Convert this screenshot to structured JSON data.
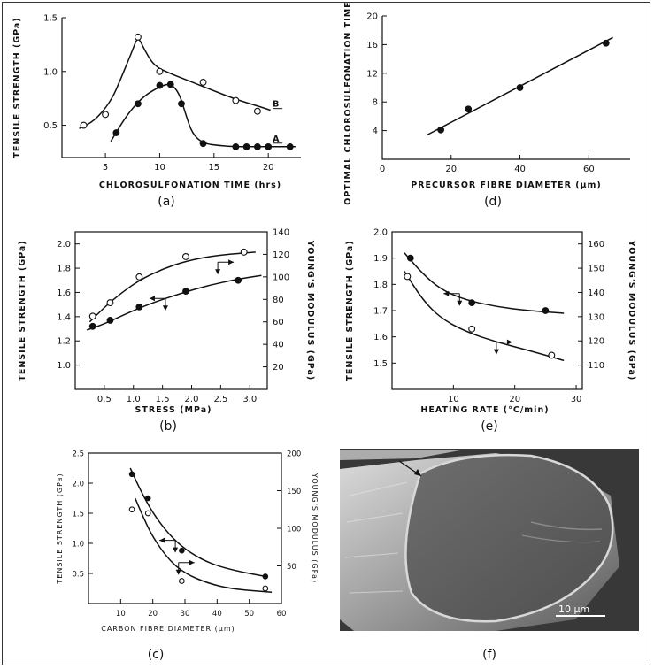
{
  "chart_data": [
    {
      "id": "a",
      "type": "scatter",
      "caption": "(a)",
      "xlabel": "CHLOROSULFONATION TIME (hrs)",
      "ylabel": "TENSILE STRENGTH (GPa)",
      "xlim": [
        1,
        23
      ],
      "ylim": [
        0.2,
        1.5
      ],
      "xticks": [
        5,
        10,
        15,
        20
      ],
      "yticks": [
        0.5,
        1.0,
        1.5
      ],
      "xtick_labels": [
        "5",
        "10",
        "15",
        "20"
      ],
      "ytick_labels": [
        "0.5",
        "1.0",
        "1.5"
      ],
      "series": [
        {
          "name": "B",
          "marker": "open",
          "x": [
            3,
            5,
            8,
            10,
            14,
            17,
            19
          ],
          "y": [
            0.5,
            0.6,
            1.32,
            1.0,
            0.9,
            0.73,
            0.63
          ],
          "curve": [
            [
              2.6,
              0.47
            ],
            [
              4,
              0.54
            ],
            [
              5.5,
              0.72
            ],
            [
              6.5,
              0.95
            ],
            [
              7.5,
              1.2
            ],
            [
              8,
              1.33
            ],
            [
              8.6,
              1.2
            ],
            [
              9.5,
              1.05
            ],
            [
              11,
              0.98
            ],
            [
              13,
              0.9
            ],
            [
              15,
              0.82
            ],
            [
              17,
              0.74
            ],
            [
              19,
              0.68
            ],
            [
              20.2,
              0.64
            ]
          ]
        },
        {
          "name": "A",
          "marker": "filled",
          "x": [
            6,
            8,
            10,
            11,
            12,
            14,
            17,
            18,
            19,
            20,
            22
          ],
          "y": [
            0.43,
            0.7,
            0.87,
            0.88,
            0.7,
            0.33,
            0.3,
            0.3,
            0.3,
            0.3,
            0.3
          ],
          "curve": [
            [
              5.5,
              0.35
            ],
            [
              7,
              0.6
            ],
            [
              8.5,
              0.77
            ],
            [
              10,
              0.86
            ],
            [
              11,
              0.89
            ],
            [
              11.8,
              0.8
            ],
            [
              12.4,
              0.6
            ],
            [
              13,
              0.42
            ],
            [
              14,
              0.33
            ],
            [
              15.5,
              0.31
            ],
            [
              17,
              0.3
            ],
            [
              22.5,
              0.3
            ]
          ]
        }
      ],
      "annotations": [
        "B",
        "A"
      ]
    },
    {
      "id": "d",
      "type": "scatter",
      "caption": "(d)",
      "xlabel": "PRECURSOR FIBRE DIAMETER (μm)",
      "ylabel": "OPTIMAL CHLOROSULFONATION TIME (hrs)",
      "xlim": [
        0,
        72
      ],
      "ylim": [
        0,
        20
      ],
      "xticks": [
        0,
        20,
        40,
        60
      ],
      "yticks": [
        4,
        8,
        12,
        16,
        20
      ],
      "xtick_labels": [
        "0",
        "20",
        "40",
        "60"
      ],
      "ytick_labels": [
        "4",
        "8",
        "12",
        "16",
        "20"
      ],
      "series": [
        {
          "marker": "filled",
          "x": [
            17,
            25,
            40,
            65
          ],
          "y": [
            4.1,
            7.0,
            10.0,
            16.2
          ],
          "curve": [
            [
              13,
              3.4
            ],
            [
              67,
              17.0
            ]
          ]
        }
      ]
    },
    {
      "id": "b",
      "type": "scatter",
      "caption": "(b)",
      "xlabel": "STRESS (MPa)",
      "ylabel": "TENSILE STRENGTH (GPa)",
      "y2label": "YOUNG'S MODULUS (GPa)",
      "xlim": [
        0,
        3.3
      ],
      "ylim": [
        0.8,
        2.1
      ],
      "y2lim": [
        0,
        140
      ],
      "xticks": [
        0.5,
        1.0,
        1.5,
        2.0,
        2.5,
        3.0
      ],
      "yticks": [
        1.0,
        1.2,
        1.4,
        1.6,
        1.8,
        2.0
      ],
      "y2ticks": [
        20,
        40,
        60,
        80,
        100,
        120,
        140
      ],
      "xtick_labels": [
        "0.5",
        "1.0",
        "1.5",
        "2.0",
        "2.5",
        "3.0"
      ],
      "ytick_labels": [
        "1.0",
        "1.2",
        "1.4",
        "1.6",
        "1.8",
        "2.0"
      ],
      "y2tick_labels": [
        "20",
        "40",
        "60",
        "80",
        "100",
        "120",
        "140"
      ],
      "series": [
        {
          "marker": "open",
          "axis": "right",
          "x": [
            0.3,
            0.6,
            1.1,
            1.9,
            2.9
          ],
          "y": [
            65,
            77,
            100,
            118,
            122
          ],
          "curve": [
            [
              0.25,
              60
            ],
            [
              0.5,
              73
            ],
            [
              0.8,
              86
            ],
            [
              1.1,
              97
            ],
            [
              1.5,
              107
            ],
            [
              1.9,
              114
            ],
            [
              2.4,
              119
            ],
            [
              3.1,
              122
            ]
          ]
        },
        {
          "marker": "filled",
          "axis": "left",
          "x": [
            0.3,
            0.6,
            1.1,
            1.9,
            2.8
          ],
          "y": [
            1.32,
            1.37,
            1.48,
            1.61,
            1.7
          ],
          "curve": [
            [
              0.2,
              1.29
            ],
            [
              0.5,
              1.34
            ],
            [
              0.9,
              1.43
            ],
            [
              1.3,
              1.51
            ],
            [
              1.8,
              1.59
            ],
            [
              2.3,
              1.66
            ],
            [
              2.8,
              1.71
            ],
            [
              3.2,
              1.74
            ]
          ]
        }
      ]
    },
    {
      "id": "e",
      "type": "scatter",
      "caption": "(e)",
      "xlabel": "HEATING RATE (°C/min)",
      "ylabel": "TENSILE STRENGTH (GPa)",
      "y2label": "YOUNG'S MODULUS (GPa)",
      "xlim": [
        0,
        31
      ],
      "ylim": [
        1.4,
        2.0
      ],
      "y2lim": [
        100,
        165
      ],
      "xticks": [
        10,
        20,
        30
      ],
      "yticks": [
        1.5,
        1.6,
        1.7,
        1.8,
        1.9,
        2.0
      ],
      "y2ticks": [
        110,
        120,
        130,
        140,
        150,
        160
      ],
      "xtick_labels": [
        "10",
        "20",
        "30"
      ],
      "ytick_labels": [
        "1.5",
        "1.6",
        "1.7",
        "1.8",
        "1.9",
        "2.0"
      ],
      "y2tick_labels": [
        "110",
        "120",
        "130",
        "140",
        "150",
        "160"
      ],
      "series": [
        {
          "marker": "filled",
          "axis": "left",
          "x": [
            3,
            13,
            25
          ],
          "y": [
            1.9,
            1.73,
            1.7
          ],
          "curve": [
            [
              2,
              1.92
            ],
            [
              5,
              1.84
            ],
            [
              8,
              1.78
            ],
            [
              12,
              1.74
            ],
            [
              17,
              1.715
            ],
            [
              22,
              1.7
            ],
            [
              28,
              1.69
            ]
          ]
        },
        {
          "marker": "open",
          "axis": "left",
          "x": [
            2.5,
            13,
            26
          ],
          "y": [
            1.83,
            1.63,
            1.53
          ],
          "curve": [
            [
              2,
              1.85
            ],
            [
              5,
              1.74
            ],
            [
              8,
              1.67
            ],
            [
              12,
              1.62
            ],
            [
              17,
              1.58
            ],
            [
              22,
              1.55
            ],
            [
              28,
              1.51
            ]
          ]
        }
      ]
    },
    {
      "id": "c",
      "type": "scatter",
      "caption": "(c)",
      "xlabel": "CARBON FIBRE DIAMETER (μm)",
      "ylabel": "TENSILE STRENGTH (GPa)",
      "y2label": "YOUNG'S MODULUS (GPa)",
      "xlim": [
        0,
        60
      ],
      "ylim": [
        0,
        2.5
      ],
      "y2lim": [
        0,
        200
      ],
      "xticks": [
        10,
        20,
        30,
        40,
        50,
        60
      ],
      "yticks": [
        0.5,
        1.0,
        1.5,
        2.0,
        2.5
      ],
      "y2ticks": [
        50,
        100,
        150,
        200
      ],
      "xtick_labels": [
        "10",
        "20",
        "30",
        "40",
        "50",
        "60"
      ],
      "ytick_labels": [
        "0.5",
        "1.0",
        "1.5",
        "2.0",
        "2.5"
      ],
      "y2tick_labels": [
        "50",
        "100",
        "150",
        "200"
      ],
      "series": [
        {
          "marker": "filled",
          "axis": "left",
          "x": [
            13.5,
            18.5,
            29,
            55
          ],
          "y": [
            2.15,
            1.75,
            0.88,
            0.45
          ],
          "curve": [
            [
              13,
              2.25
            ],
            [
              16,
              1.9
            ],
            [
              20,
              1.5
            ],
            [
              25,
              1.15
            ],
            [
              30,
              0.9
            ],
            [
              37,
              0.68
            ],
            [
              45,
              0.55
            ],
            [
              55,
              0.45
            ]
          ]
        },
        {
          "marker": "open",
          "axis": "right",
          "x": [
            13.5,
            18.5,
            29,
            55
          ],
          "y": [
            125,
            120,
            30,
            20
          ],
          "curve": [
            [
              14.5,
              140
            ],
            [
              17,
              115
            ],
            [
              20,
              88
            ],
            [
              25,
              58
            ],
            [
              30,
              40
            ],
            [
              37,
              27
            ],
            [
              45,
              19
            ],
            [
              57,
              15
            ]
          ]
        }
      ]
    }
  ],
  "photo": {
    "caption": "(f)",
    "scalebar_label": "10 μm"
  }
}
